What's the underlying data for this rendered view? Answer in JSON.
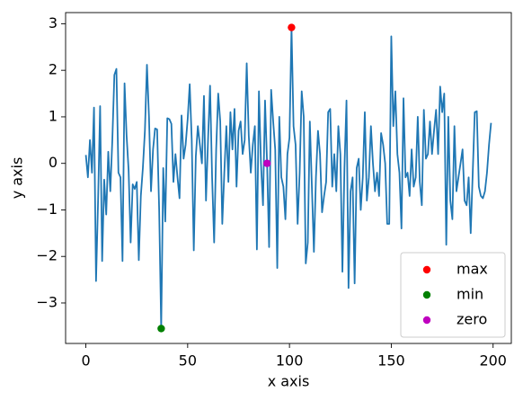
{
  "chart_data": {
    "type": "line",
    "x_label": "x axis",
    "y_label": "y axis",
    "xlim": [
      -9.95,
      208.95
    ],
    "ylim": [
      -3.87,
      3.24
    ],
    "xticks": [
      0,
      50,
      100,
      150,
      200
    ],
    "yticks": [
      {
        "value": -3,
        "label": "−3"
      },
      {
        "value": -2,
        "label": "−2"
      },
      {
        "value": -1,
        "label": "−1"
      },
      0,
      1,
      2,
      3
    ],
    "legend": "lower right",
    "x": [
      0,
      1,
      2,
      3,
      4,
      5,
      6,
      7,
      8,
      9,
      10,
      11,
      12,
      13,
      14,
      15,
      16,
      17,
      18,
      19,
      20,
      21,
      22,
      23,
      24,
      25,
      26,
      27,
      28,
      29,
      30,
      31,
      32,
      33,
      34,
      35,
      36,
      37,
      38,
      39,
      40,
      41,
      42,
      43,
      44,
      45,
      46,
      47,
      48,
      49,
      50,
      51,
      52,
      53,
      54,
      55,
      56,
      57,
      58,
      59,
      60,
      61,
      62,
      63,
      64,
      65,
      66,
      67,
      68,
      69,
      70,
      71,
      72,
      73,
      74,
      75,
      76,
      77,
      78,
      79,
      80,
      81,
      82,
      83,
      84,
      85,
      86,
      87,
      88,
      89,
      90,
      91,
      92,
      93,
      94,
      95,
      96,
      97,
      98,
      99,
      100,
      101,
      102,
      103,
      104,
      105,
      106,
      107,
      108,
      109,
      110,
      111,
      112,
      113,
      114,
      115,
      116,
      117,
      118,
      119,
      120,
      121,
      122,
      123,
      124,
      125,
      126,
      127,
      128,
      129,
      130,
      131,
      132,
      133,
      134,
      135,
      136,
      137,
      138,
      139,
      140,
      141,
      142,
      143,
      144,
      145,
      146,
      147,
      148,
      149,
      150,
      151,
      152,
      153,
      154,
      155,
      156,
      157,
      158,
      159,
      160,
      161,
      162,
      163,
      164,
      165,
      166,
      167,
      168,
      169,
      170,
      171,
      172,
      173,
      174,
      175,
      176,
      177,
      178,
      179,
      180,
      181,
      182,
      183,
      184,
      185,
      186,
      187,
      188,
      189,
      190,
      191,
      192,
      193,
      194,
      195,
      196,
      197,
      198,
      199
    ],
    "series": [
      {
        "color": "#1f77b4",
        "values": [
          0.18,
          -0.3,
          0.5,
          -0.2,
          1.2,
          -2.53,
          -0.8,
          1.23,
          -2.1,
          -0.35,
          -1.1,
          0.25,
          -0.6,
          0.5,
          1.9,
          2.03,
          -0.2,
          -0.3,
          -2.1,
          1.72,
          0.6,
          -0.15,
          -1.7,
          -0.45,
          -0.55,
          -0.4,
          -2.08,
          -0.7,
          -0.1,
          0.7,
          2.12,
          1.0,
          -0.6,
          0.3,
          0.75,
          0.73,
          -1.0,
          -3.55,
          -0.1,
          -1.25,
          0.97,
          0.95,
          0.85,
          -0.4,
          0.2,
          -0.3,
          -0.75,
          1.03,
          0.1,
          0.4,
          0.95,
          1.7,
          0.5,
          -1.87,
          0.15,
          0.8,
          0.4,
          0.0,
          1.45,
          -0.8,
          0.5,
          1.67,
          -0.3,
          -1.7,
          0.3,
          1.5,
          0.9,
          -1.3,
          -0.2,
          0.8,
          -0.4,
          1.1,
          0.3,
          1.17,
          -0.5,
          0.7,
          0.9,
          0.2,
          0.5,
          2.15,
          0.6,
          -0.2,
          0.4,
          0.8,
          -1.85,
          1.55,
          0.0,
          -0.9,
          1.35,
          0.0,
          -1.8,
          1.58,
          0.9,
          0.3,
          -2.25,
          1.0,
          -0.3,
          -0.5,
          -1.2,
          0.2,
          0.55,
          2.92,
          0.8,
          0.4,
          -1.3,
          -0.2,
          1.55,
          1.0,
          -2.15,
          -1.7,
          0.9,
          -0.5,
          -1.9,
          -0.3,
          0.7,
          0.2,
          -1.05,
          -0.7,
          -0.4,
          1.1,
          1.17,
          -0.5,
          0.2,
          -0.6,
          0.8,
          0.2,
          -2.33,
          -0.1,
          1.35,
          -2.68,
          -0.6,
          -0.3,
          -2.58,
          -0.1,
          0.1,
          -1.0,
          -0.3,
          1.1,
          -0.8,
          -0.3,
          0.8,
          0.0,
          -0.6,
          -0.2,
          -0.7,
          0.65,
          0.4,
          0.0,
          -1.3,
          -1.3,
          2.73,
          0.8,
          1.55,
          0.2,
          -0.2,
          -1.4,
          1.4,
          -0.3,
          -0.2,
          -0.7,
          0.3,
          -0.5,
          -0.3,
          1.0,
          -0.4,
          -0.9,
          1.15,
          0.1,
          0.2,
          0.9,
          0.2,
          0.7,
          1.15,
          0.2,
          1.65,
          1.1,
          1.5,
          -1.75,
          1.0,
          -0.8,
          -1.2,
          0.8,
          -0.6,
          -0.3,
          0.0,
          0.3,
          -0.8,
          -0.9,
          -0.3,
          -1.5,
          -0.2,
          1.1,
          1.12,
          -0.5,
          -0.7,
          -0.75,
          -0.6,
          -0.2,
          0.4,
          0.87
        ]
      }
    ],
    "points": [
      {
        "name": "max",
        "color": "#ff0000",
        "x": 101,
        "y": 2.92
      },
      {
        "name": "min",
        "color": "#008000",
        "x": 37,
        "y": -3.55
      },
      {
        "name": "zero",
        "color": "#bf00bf",
        "x": 89,
        "y": 0.0
      }
    ]
  }
}
